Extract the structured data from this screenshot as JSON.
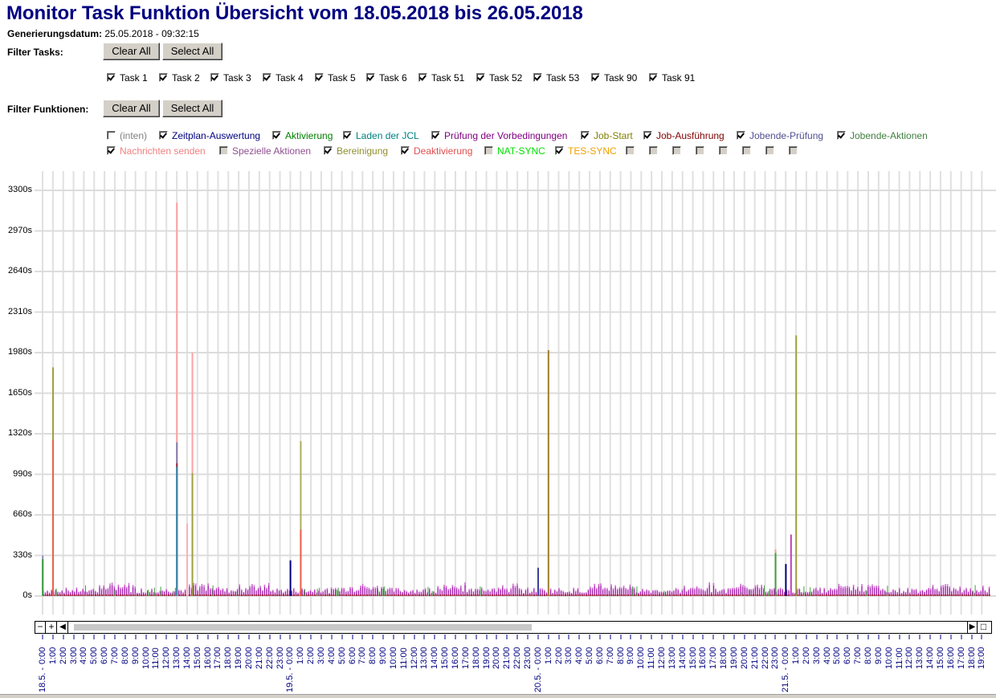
{
  "header": {
    "title": "Monitor Task Funktion Übersicht vom 18.05.2018 bis 26.05.2018",
    "generation_label": "Generierungsdatum:",
    "generation_value": "25.05.2018 - 09:32:15"
  },
  "filter_tasks": {
    "label": "Filter Tasks:",
    "clear_label": "Clear All",
    "select_label": "Select All",
    "items": [
      {
        "label": "Task 1",
        "checked": true
      },
      {
        "label": "Task 2",
        "checked": true
      },
      {
        "label": "Task 3",
        "checked": true
      },
      {
        "label": "Task 4",
        "checked": true
      },
      {
        "label": "Task 5",
        "checked": true
      },
      {
        "label": "Task 6",
        "checked": true
      },
      {
        "label": "Task 51",
        "checked": true
      },
      {
        "label": "Task 52",
        "checked": true
      },
      {
        "label": "Task 53",
        "checked": true
      },
      {
        "label": "Task 90",
        "checked": true
      },
      {
        "label": "Task 91",
        "checked": true
      }
    ]
  },
  "filter_functions": {
    "label": "Filter Funktionen:",
    "clear_label": "Clear All",
    "select_label": "Select All",
    "items": [
      {
        "label": "(inten)",
        "checked": false,
        "disabled": false,
        "color": "#808080"
      },
      {
        "label": "Zeitplan-Auswertung",
        "checked": true,
        "color": "#000080"
      },
      {
        "label": "Aktivierung",
        "checked": true,
        "color": "#008000"
      },
      {
        "label": "Laden der JCL",
        "checked": true,
        "color": "#008080"
      },
      {
        "label": "Prüfung der Vorbedingungen",
        "checked": true,
        "color": "#800080"
      },
      {
        "label": "Job-Start",
        "checked": true,
        "color": "#808000"
      },
      {
        "label": "Job-Ausführung",
        "checked": true,
        "color": "#800000"
      },
      {
        "label": "Jobende-Prüfung",
        "checked": true,
        "color": "#505090"
      },
      {
        "label": "Jobende-Aktionen",
        "checked": true,
        "color": "#408040"
      },
      {
        "label": "Nachrichten senden",
        "checked": true,
        "color": "#f08080"
      },
      {
        "label": "Spezielle Aktionen",
        "checked": false,
        "disabled": true,
        "color": "#905090"
      },
      {
        "label": "Bereinigung",
        "checked": true,
        "color": "#909030"
      },
      {
        "label": "Deaktivierung",
        "checked": true,
        "color": "#e05050"
      },
      {
        "label": "NAT-SYNC",
        "checked": false,
        "disabled": true,
        "color": "#00e000"
      },
      {
        "label": "TES-SYNC",
        "checked": true,
        "color": "#f0a000"
      },
      {
        "label": "",
        "checked": false,
        "disabled": true
      },
      {
        "label": "",
        "checked": false,
        "disabled": true
      },
      {
        "label": "",
        "checked": false,
        "disabled": true
      },
      {
        "label": "",
        "checked": false,
        "disabled": true
      },
      {
        "label": "",
        "checked": false,
        "disabled": true
      },
      {
        "label": "",
        "checked": false,
        "disabled": true
      },
      {
        "label": "",
        "checked": false,
        "disabled": true
      },
      {
        "label": "",
        "checked": false,
        "disabled": true
      }
    ]
  },
  "scrollbar": {
    "zoom_out": "−",
    "zoom_in": "+",
    "left": "◀",
    "right": "▶",
    "reset": "□"
  },
  "chart_data": {
    "type": "bar",
    "title": "Monitor Task Funktion Übersicht vom 18.05.2018 bis 26.05.2018",
    "xlabel": "",
    "ylabel": "",
    "ylim": [
      0,
      3300
    ],
    "yticks": [
      "0s",
      "330s",
      "660s",
      "990s",
      "1320s",
      "1650s",
      "1980s",
      "2310s",
      "2640s",
      "2970s",
      "3300s"
    ],
    "grid": true,
    "legend_position": "top (checkbox filter)",
    "x_days": [
      {
        "label": "18.5. -",
        "start_hour": 0
      },
      {
        "label": "19.5. -",
        "start_hour": 0
      },
      {
        "label": "20.5. -",
        "start_hour": 0
      },
      {
        "label": "21.5. -",
        "start_hour": 0
      }
    ],
    "x_hour_labels_per_day": [
      "0:00",
      "1:00",
      "2:00",
      "3:00",
      "4:00",
      "5:00",
      "6:00",
      "7:00",
      "8:00",
      "9:00",
      "10:00",
      "11:00",
      "12:00",
      "13:00",
      "14:00",
      "15:00",
      "16:00",
      "17:00",
      "18:00",
      "19:00",
      "20:00",
      "21:00",
      "22:00",
      "23:00"
    ],
    "x_last_day_end_hour": 19,
    "baseline_level_s": 60,
    "spikes": [
      {
        "x": "18.5. 0:00",
        "series": "Jobende-Prüfung",
        "value": 330,
        "color": "#9090c0"
      },
      {
        "x": "18.5. 0:00",
        "series": "Aktivierung",
        "value": 300,
        "color": "#40a040"
      },
      {
        "x": "18.5. 1:00",
        "series": "Bereinigung",
        "value": 1860,
        "color": "#a0a040"
      },
      {
        "x": "18.5. 1:00",
        "series": "Deaktivierung",
        "value": 1270,
        "color": "#f06050"
      },
      {
        "x": "18.5. 13:00",
        "series": "Nachrichten senden",
        "value": 3200,
        "color": "#ffa0a0"
      },
      {
        "x": "18.5. 13:00",
        "series": "Jobende-Prüfung",
        "value": 1250,
        "color": "#8080b0"
      },
      {
        "x": "18.5. 13:00",
        "series": "Job-Ausführung",
        "value": 1080,
        "color": "#a03040"
      },
      {
        "x": "18.5. 13:00",
        "series": "Laden der JCL",
        "value": 1050,
        "color": "#3090b0"
      },
      {
        "x": "18.5. 14:00",
        "series": "Nachrichten senden",
        "value": 590,
        "color": "#ffb0b0"
      },
      {
        "x": "18.5. 14:30",
        "series": "Nachrichten senden",
        "value": 1980,
        "color": "#ffa0a0"
      },
      {
        "x": "18.5. 14:30",
        "series": "Bereinigung",
        "value": 1000,
        "color": "#a0a040"
      },
      {
        "x": "19.5. 0:00",
        "series": "Zeitplan-Auswertung",
        "value": 290,
        "color": "#000080"
      },
      {
        "x": "19.5. 1:00",
        "series": "Bereinigung",
        "value": 1260,
        "color": "#b0b060"
      },
      {
        "x": "19.5. 1:00",
        "series": "Deaktivierung",
        "value": 540,
        "color": "#f06050"
      },
      {
        "x": "20.5. 0:00",
        "series": "Zeitplan-Auswertung",
        "value": 230,
        "color": "#4040a0"
      },
      {
        "x": "20.5. 1:00",
        "series": "Job-Start",
        "value": 2000,
        "color": "#a08030"
      },
      {
        "x": "20.5. 23:00",
        "series": "Nachrichten senden",
        "value": 380,
        "color": "#f0a0a0"
      },
      {
        "x": "20.5. 23:00",
        "series": "Aktivierung",
        "value": 350,
        "color": "#40a040"
      },
      {
        "x": "21.5. 0:00",
        "series": "Zeitplan-Auswertung",
        "value": 260,
        "color": "#000080"
      },
      {
        "x": "21.5. 0:30",
        "series": "Prüfung der Vorbedingungen",
        "value": 500,
        "color": "#c040c0"
      },
      {
        "x": "21.5. 1:00",
        "series": "Bereinigung",
        "value": 2120,
        "color": "#a0a040"
      }
    ]
  }
}
